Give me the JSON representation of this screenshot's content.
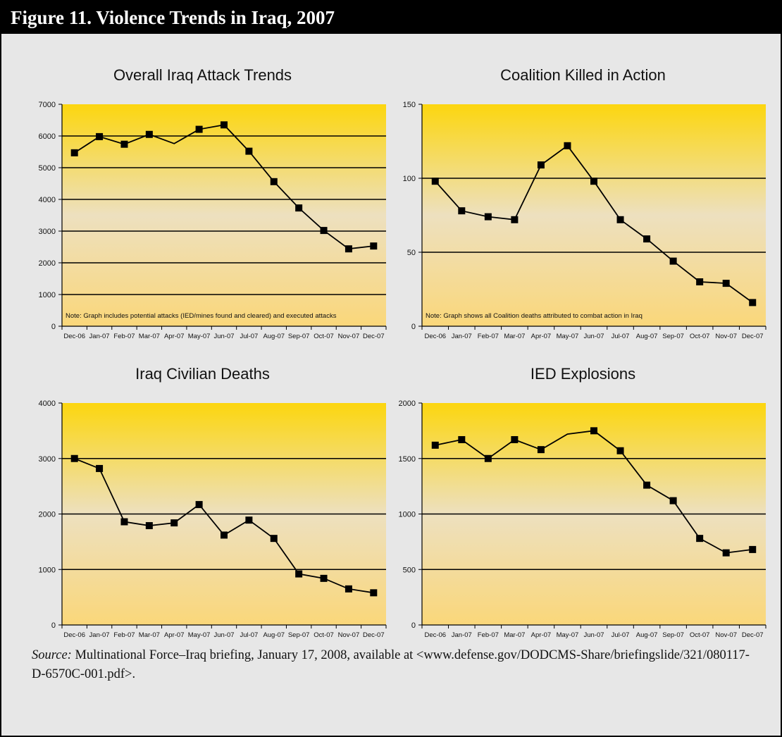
{
  "figure": {
    "title": "Figure 11. Violence Trends in Iraq, 2007",
    "source_label": "Source:",
    "source_text": " Multinational Force–Iraq briefing, January 17, 2008, available at <www.defense.gov/DODCMS-Share/briefingslide/321/080117-D-6570C-001.pdf>."
  },
  "colors": {
    "plot_top": "#fcd60f",
    "plot_mid": "#ede0bf",
    "plot_bottom": "#fad77a",
    "line": "#000000",
    "marker": "#000000"
  },
  "chart_data": [
    {
      "type": "line",
      "title": "Overall Iraq Attack Trends",
      "xlabel": "",
      "ylabel": "",
      "categories": [
        "Dec-06",
        "Jan-07",
        "Feb-07",
        "Mar-07",
        "Apr-07",
        "May-07",
        "Jun-07",
        "Jul-07",
        "Aug-07",
        "Sep-07",
        "Oct-07",
        "Nov-07",
        "Dec-07"
      ],
      "series": [
        {
          "values": [
            5470,
            5980,
            5740,
            6050,
            5760,
            6210,
            6350,
            5520,
            4560,
            3730,
            3020,
            2440,
            2530
          ],
          "markers": [
            true,
            true,
            true,
            true,
            false,
            true,
            true,
            true,
            true,
            true,
            true,
            true,
            true
          ]
        }
      ],
      "ylim": [
        0,
        7000
      ],
      "yticks": [
        0,
        1000,
        2000,
        3000,
        4000,
        5000,
        6000,
        7000
      ],
      "gridlines": [
        1000,
        2000,
        3000,
        4000,
        5000,
        6000
      ],
      "note": "Note: Graph includes potential attacks (IED/mines found and cleared) and executed attacks"
    },
    {
      "type": "line",
      "title": "Coalition Killed in Action",
      "xlabel": "",
      "ylabel": "",
      "categories": [
        "Dec-06",
        "Jan-07",
        "Feb-07",
        "Mar-07",
        "Apr-07",
        "May-07",
        "Jun-07",
        "Jul-07",
        "Aug-07",
        "Sep-07",
        "Oct-07",
        "Nov-07",
        "Dec-07"
      ],
      "series": [
        {
          "values": [
            98,
            78,
            74,
            72,
            109,
            122,
            98,
            72,
            59,
            44,
            30,
            29,
            16
          ],
          "markers": [
            true,
            true,
            true,
            true,
            true,
            true,
            true,
            true,
            true,
            true,
            true,
            true,
            true
          ]
        }
      ],
      "ylim": [
        0,
        150
      ],
      "yticks": [
        0,
        50,
        100,
        150
      ],
      "gridlines": [
        50,
        100
      ],
      "note": "Note: Graph shows all Coalition deaths attributed to combat action in Iraq"
    },
    {
      "type": "line",
      "title": "Iraq Civilian Deaths",
      "xlabel": "",
      "ylabel": "",
      "categories": [
        "Dec-06",
        "Jan-07",
        "Feb-07",
        "Mar-07",
        "Apr-07",
        "May-07",
        "Jun-07",
        "Jul-07",
        "Aug-07",
        "Sep-07",
        "Oct-07",
        "Nov-07",
        "Dec-07"
      ],
      "series": [
        {
          "values": [
            3000,
            2820,
            1860,
            1790,
            1840,
            2170,
            1620,
            1890,
            1560,
            920,
            840,
            650,
            580
          ],
          "markers": [
            true,
            true,
            true,
            true,
            true,
            true,
            true,
            true,
            true,
            true,
            true,
            true,
            true
          ]
        }
      ],
      "ylim": [
        0,
        4000
      ],
      "yticks": [
        0,
        1000,
        2000,
        3000,
        4000
      ],
      "gridlines": [
        1000,
        2000,
        3000
      ],
      "note": ""
    },
    {
      "type": "line",
      "title": "IED Explosions",
      "xlabel": "",
      "ylabel": "",
      "categories": [
        "Dec-06",
        "Jan-07",
        "Feb-07",
        "Mar-07",
        "Apr-07",
        "May-07",
        "Jun-07",
        "Jul-07",
        "Aug-07",
        "Sep-07",
        "Oct-07",
        "Nov-07",
        "Dec-07"
      ],
      "series": [
        {
          "values": [
            1620,
            1670,
            1500,
            1670,
            1580,
            1720,
            1750,
            1570,
            1260,
            1120,
            780,
            650,
            680
          ],
          "markers": [
            true,
            true,
            true,
            true,
            true,
            false,
            true,
            true,
            true,
            true,
            true,
            true,
            true
          ]
        }
      ],
      "ylim": [
        0,
        2000
      ],
      "yticks": [
        0,
        500,
        1000,
        1500,
        2000
      ],
      "gridlines": [
        500,
        1000,
        1500
      ],
      "note": ""
    }
  ]
}
